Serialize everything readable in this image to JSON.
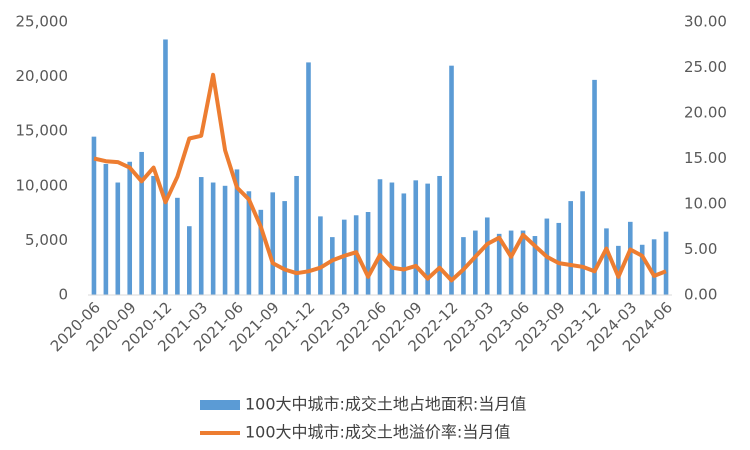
{
  "chart_data": {
    "type": "bar-line",
    "categories": [
      "2020-06",
      null,
      null,
      "2020-09",
      null,
      null,
      "2020-12",
      null,
      null,
      "2021-03",
      null,
      null,
      "2021-06",
      null,
      null,
      "2021-09",
      null,
      null,
      "2021-12",
      null,
      null,
      "2022-03",
      null,
      null,
      "2022-06",
      null,
      null,
      "2022-09",
      null,
      null,
      "2022-12",
      null,
      null,
      "2023-03",
      null,
      null,
      "2023-06",
      null,
      null,
      "2023-09",
      null,
      null,
      "2023-12",
      null,
      null,
      "2024-03",
      null,
      null,
      "2024-06"
    ],
    "series": [
      {
        "name": "100大中城市:成交土地占地面积:当月值",
        "type": "bar",
        "color": "#5b9bd5",
        "values": [
          14500,
          12000,
          10300,
          12200,
          13100,
          10900,
          23400,
          8900,
          6300,
          10800,
          10300,
          10000,
          11500,
          9500,
          7800,
          9400,
          8600,
          10900,
          21300,
          7200,
          5300,
          6900,
          7300,
          7600,
          10600,
          10300,
          9300,
          10500,
          10200,
          10900,
          21000,
          5300,
          5900,
          7100,
          5600,
          5900,
          5900,
          5400,
          7000,
          6600,
          8600,
          9500,
          19700,
          6100,
          4500,
          6700,
          4600,
          5100,
          5800
        ]
      },
      {
        "name": "100大中城市:成交土地溢价率:当月值",
        "type": "line",
        "axis": "y2",
        "color": "#ed7d31",
        "values": [
          15.0,
          14.7,
          14.6,
          14.0,
          12.5,
          14.0,
          10.2,
          13.0,
          17.2,
          17.5,
          24.2,
          15.9,
          11.8,
          10.5,
          7.5,
          3.5,
          2.8,
          2.4,
          2.6,
          3.0,
          3.8,
          4.3,
          4.7,
          2.0,
          4.4,
          3.0,
          2.8,
          3.2,
          1.8,
          3.0,
          1.6,
          2.8,
          4.2,
          5.6,
          6.3,
          4.2,
          6.6,
          5.4,
          4.2,
          3.5,
          3.3,
          3.1,
          2.6,
          5.1,
          2.0,
          5.0,
          4.3,
          2.1,
          2.6
        ]
      }
    ],
    "ylim": [
      0,
      25000
    ],
    "yticks": [
      0,
      {
        "value": 5000,
        "label": "5,000"
      },
      {
        "value": 10000,
        "label": "10,000"
      },
      {
        "value": 15000,
        "label": "15,000"
      },
      {
        "value": 20000,
        "label": "20,000"
      },
      {
        "value": 25000,
        "label": "25,000"
      }
    ],
    "y2lim": [
      0,
      30
    ],
    "y2ticks": [
      {
        "value": 0,
        "label": "0.00"
      },
      {
        "value": 5,
        "label": "5.00"
      },
      {
        "value": 10,
        "label": "10.00"
      },
      {
        "value": 15,
        "label": "15.00"
      },
      {
        "value": 20,
        "label": "20.00"
      },
      {
        "value": 25,
        "label": "25.00"
      },
      {
        "value": 30,
        "label": "30.00"
      }
    ],
    "legend": "bottom"
  }
}
